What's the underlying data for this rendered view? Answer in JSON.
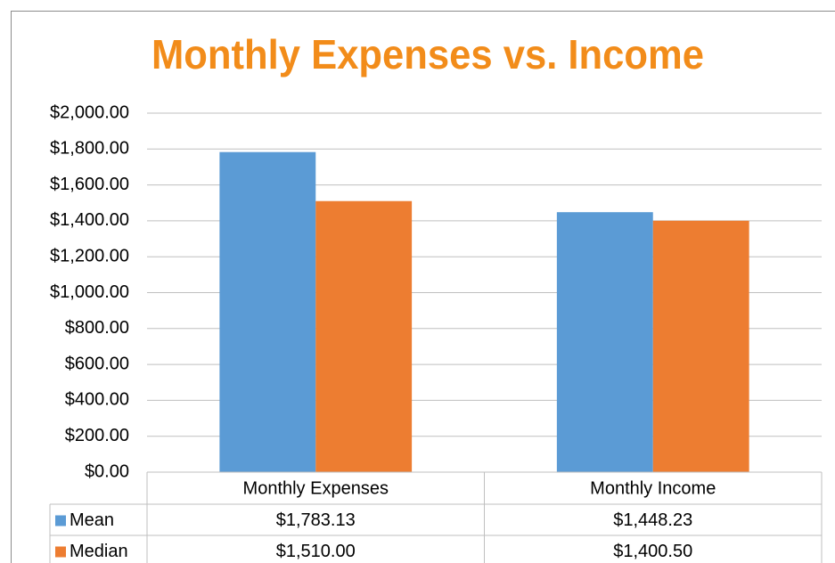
{
  "chart_data": {
    "type": "bar",
    "title": "Monthly Expenses vs. Income",
    "categories": [
      "Monthly Expenses",
      "Monthly Income"
    ],
    "series": [
      {
        "name": "Mean",
        "color": "#5b9bd5",
        "values": [
          1783.13,
          1448.23
        ],
        "value_labels": [
          "$1,783.13",
          "$1,448.23"
        ]
      },
      {
        "name": "Median",
        "color": "#ed7d31",
        "values": [
          1510.0,
          1400.5
        ],
        "value_labels": [
          "$1,510.00",
          "$1,400.50"
        ]
      }
    ],
    "ylim": [
      0,
      2000
    ],
    "yticks": [
      {
        "value": 0,
        "label": "$0.00"
      },
      {
        "value": 200,
        "label": "$200.00"
      },
      {
        "value": 400,
        "label": "$400.00"
      },
      {
        "value": 600,
        "label": "$600.00"
      },
      {
        "value": 800,
        "label": "$800.00"
      },
      {
        "value": 1000,
        "label": "$1,000.00"
      },
      {
        "value": 1200,
        "label": "$1,200.00"
      },
      {
        "value": 1400,
        "label": "$1,400.00"
      },
      {
        "value": 1600,
        "label": "$1,600.00"
      },
      {
        "value": 1800,
        "label": "$1,800.00"
      },
      {
        "value": 2000,
        "label": "$2,000.00"
      }
    ],
    "grid": true,
    "title_color": "#f28c1a"
  }
}
